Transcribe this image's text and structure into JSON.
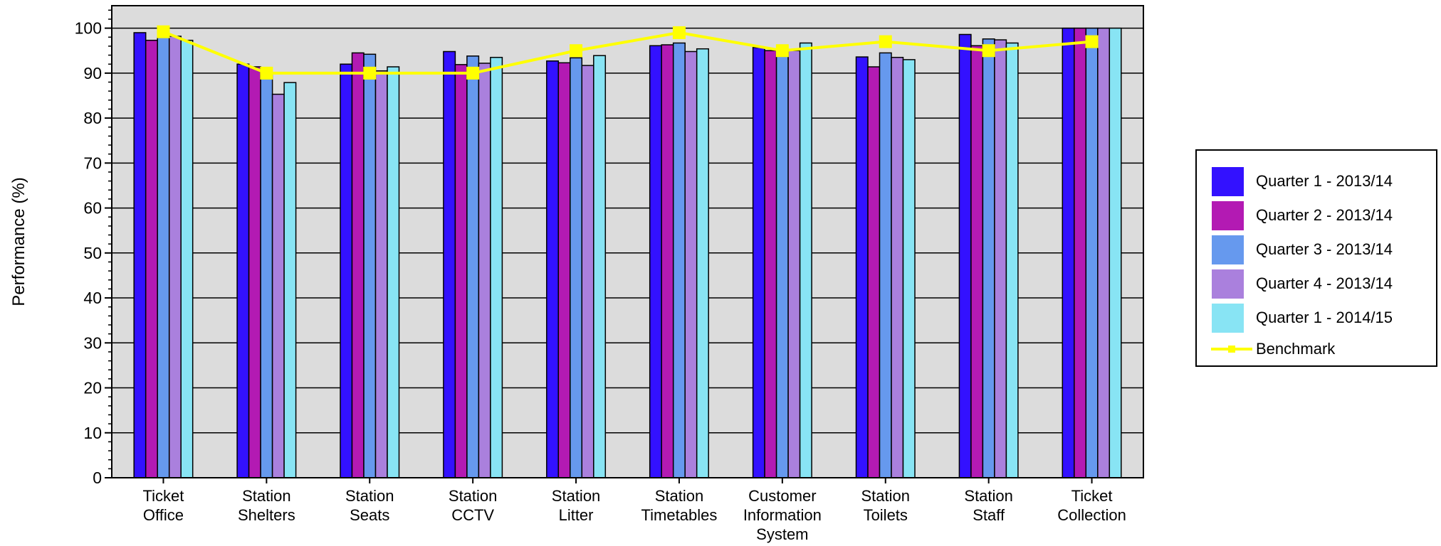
{
  "chart_data": {
    "type": "bar",
    "ylabel": "Performance (%)",
    "ylim": [
      0,
      105
    ],
    "yticks": [
      0,
      10,
      20,
      30,
      40,
      50,
      60,
      70,
      80,
      90,
      100
    ],
    "grid": true,
    "legend_position": "right",
    "categories": [
      [
        "Ticket",
        "Office"
      ],
      [
        "Station",
        "Shelters"
      ],
      [
        "Station",
        "Seats"
      ],
      [
        "Station",
        "CCTV"
      ],
      [
        "Station",
        "Litter"
      ],
      [
        "Station",
        "Timetables"
      ],
      [
        "Customer",
        "Information",
        "System"
      ],
      [
        "Station",
        "Toilets"
      ],
      [
        "Station",
        "Staff"
      ],
      [
        "Ticket",
        "Collection"
      ]
    ],
    "series": [
      {
        "name": "Quarter 1 - 2013/14",
        "color": "#3311FF",
        "values": [
          99.0,
          92.0,
          92.0,
          94.8,
          92.7,
          96.1,
          95.7,
          93.6,
          98.6,
          100.0
        ]
      },
      {
        "name": "Quarter 2 - 2013/14",
        "color": "#B31AB3",
        "values": [
          97.3,
          91.4,
          94.5,
          91.9,
          92.3,
          96.3,
          95.0,
          91.4,
          96.1,
          100.0
        ]
      },
      {
        "name": "Quarter 3 - 2013/14",
        "color": "#6699EE",
        "values": [
          98.0,
          89.5,
          94.2,
          93.8,
          93.4,
          96.7,
          94.0,
          94.5,
          97.6,
          100.0
        ]
      },
      {
        "name": "Quarter 4 - 2013/14",
        "color": "#AA80DD",
        "values": [
          98.2,
          85.3,
          90.5,
          92.2,
          91.7,
          94.8,
          95.0,
          93.5,
          97.4,
          100.0
        ]
      },
      {
        "name": "Quarter 1 - 2014/15",
        "color": "#88E4F4",
        "values": [
          97.3,
          87.9,
          91.4,
          93.5,
          93.9,
          95.4,
          96.7,
          93.0,
          96.7,
          100.0
        ]
      }
    ],
    "line_series": {
      "name": "Benchmark",
      "color": "#FFFF00",
      "values": [
        99.2,
        90.0,
        90.0,
        90.0,
        95.0,
        99.0,
        95.0,
        97.0,
        95.0,
        97.0
      ]
    }
  }
}
